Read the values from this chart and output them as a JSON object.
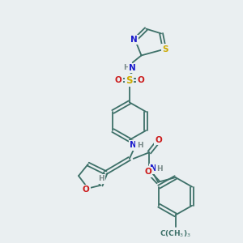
{
  "bg_color": "#eaeff1",
  "atom_colors": {
    "C": "#3d7068",
    "N": "#1a1acc",
    "O": "#cc1a1a",
    "S": "#ccaa00",
    "H": "#7a8a8a"
  },
  "bond_color": "#3d7068",
  "lw": 1.3
}
